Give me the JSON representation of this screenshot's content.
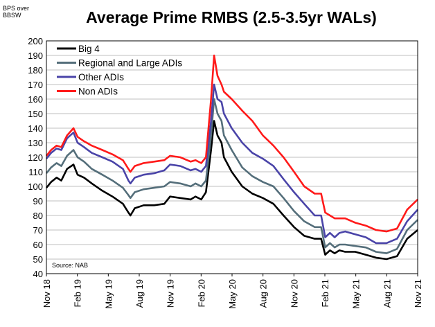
{
  "chart_data": {
    "type": "line",
    "title": "Average Prime RMBS (2.5-3.5yr WALs)",
    "units_label": [
      "BPS over",
      "BBSW"
    ],
    "source": "Source: NAB",
    "ylim": [
      40,
      200
    ],
    "yticks": [
      40,
      50,
      60,
      70,
      80,
      90,
      100,
      110,
      120,
      130,
      140,
      150,
      160,
      170,
      180,
      190,
      200
    ],
    "xlim": [
      "2018-11-01",
      "2021-11-01"
    ],
    "xticks": [
      "Nov 18",
      "Feb 19",
      "May 19",
      "Aug 19",
      "Nov 19",
      "Feb 20",
      "May 20",
      "Aug 20",
      "Nov 20",
      "Feb 21",
      "May 21",
      "Aug 21",
      "Nov 21"
    ],
    "grid": true,
    "legend_position": "top-left",
    "series": [
      {
        "name": "Big 4",
        "color": "#000000",
        "points": [
          [
            "2018-11-01",
            99
          ],
          [
            "2018-11-15",
            103
          ],
          [
            "2018-12-01",
            106
          ],
          [
            "2018-12-15",
            104
          ],
          [
            "2019-01-01",
            112
          ],
          [
            "2019-01-20",
            115
          ],
          [
            "2019-02-01",
            108
          ],
          [
            "2019-02-20",
            106
          ],
          [
            "2019-03-15",
            102
          ],
          [
            "2019-04-15",
            97
          ],
          [
            "2019-05-15",
            93
          ],
          [
            "2019-06-15",
            88
          ],
          [
            "2019-07-01",
            82
          ],
          [
            "2019-07-07",
            80
          ],
          [
            "2019-07-20",
            85
          ],
          [
            "2019-08-15",
            87
          ],
          [
            "2019-09-15",
            87
          ],
          [
            "2019-10-15",
            88
          ],
          [
            "2019-11-01",
            93
          ],
          [
            "2019-12-01",
            92
          ],
          [
            "2020-01-01",
            91
          ],
          [
            "2020-01-15",
            93
          ],
          [
            "2020-02-01",
            91
          ],
          [
            "2020-02-15",
            96
          ],
          [
            "2020-03-01",
            125
          ],
          [
            "2020-03-10",
            145
          ],
          [
            "2020-03-20",
            135
          ],
          [
            "2020-04-01",
            130
          ],
          [
            "2020-04-08",
            120
          ],
          [
            "2020-05-01",
            110
          ],
          [
            "2020-06-01",
            100
          ],
          [
            "2020-07-01",
            95
          ],
          [
            "2020-08-01",
            92
          ],
          [
            "2020-09-01",
            88
          ],
          [
            "2020-10-01",
            80
          ],
          [
            "2020-11-01",
            72
          ],
          [
            "2020-12-01",
            66
          ],
          [
            "2021-01-01",
            64
          ],
          [
            "2021-01-20",
            64
          ],
          [
            "2021-02-01",
            53
          ],
          [
            "2021-02-15",
            56
          ],
          [
            "2021-03-01",
            54
          ],
          [
            "2021-03-15",
            56
          ],
          [
            "2021-04-01",
            55
          ],
          [
            "2021-05-01",
            55
          ],
          [
            "2021-06-01",
            53
          ],
          [
            "2021-07-01",
            51
          ],
          [
            "2021-08-01",
            50
          ],
          [
            "2021-09-01",
            52
          ],
          [
            "2021-10-01",
            64
          ],
          [
            "2021-11-01",
            70
          ]
        ]
      },
      {
        "name": "Regional and Large ADIs",
        "color": "#546e7a",
        "points": [
          [
            "2018-11-01",
            109
          ],
          [
            "2018-11-15",
            113
          ],
          [
            "2018-12-01",
            116
          ],
          [
            "2018-12-15",
            114
          ],
          [
            "2019-01-01",
            121
          ],
          [
            "2019-01-20",
            125
          ],
          [
            "2019-02-01",
            120
          ],
          [
            "2019-02-20",
            117
          ],
          [
            "2019-03-15",
            112
          ],
          [
            "2019-04-15",
            108
          ],
          [
            "2019-05-15",
            104
          ],
          [
            "2019-06-15",
            99
          ],
          [
            "2019-07-01",
            94
          ],
          [
            "2019-07-07",
            92
          ],
          [
            "2019-07-20",
            96
          ],
          [
            "2019-08-15",
            98
          ],
          [
            "2019-09-15",
            99
          ],
          [
            "2019-10-15",
            100
          ],
          [
            "2019-11-01",
            103
          ],
          [
            "2019-12-01",
            102
          ],
          [
            "2020-01-01",
            100
          ],
          [
            "2020-01-15",
            102
          ],
          [
            "2020-02-01",
            100
          ],
          [
            "2020-02-15",
            104
          ],
          [
            "2020-03-01",
            135
          ],
          [
            "2020-03-10",
            160
          ],
          [
            "2020-03-20",
            150
          ],
          [
            "2020-04-01",
            145
          ],
          [
            "2020-04-08",
            135
          ],
          [
            "2020-05-01",
            125
          ],
          [
            "2020-06-01",
            113
          ],
          [
            "2020-07-01",
            107
          ],
          [
            "2020-08-01",
            103
          ],
          [
            "2020-09-01",
            100
          ],
          [
            "2020-10-01",
            92
          ],
          [
            "2020-11-01",
            83
          ],
          [
            "2020-12-01",
            76
          ],
          [
            "2021-01-01",
            72
          ],
          [
            "2021-01-20",
            72
          ],
          [
            "2021-02-01",
            58
          ],
          [
            "2021-02-15",
            61
          ],
          [
            "2021-03-01",
            58
          ],
          [
            "2021-03-15",
            60
          ],
          [
            "2021-04-01",
            60
          ],
          [
            "2021-05-01",
            59
          ],
          [
            "2021-06-01",
            58
          ],
          [
            "2021-07-01",
            55
          ],
          [
            "2021-08-01",
            54
          ],
          [
            "2021-09-01",
            57
          ],
          [
            "2021-10-01",
            70
          ],
          [
            "2021-11-01",
            77
          ]
        ]
      },
      {
        "name": "Other ADIs",
        "color": "#4a44a8",
        "points": [
          [
            "2018-11-01",
            119
          ],
          [
            "2018-11-15",
            123
          ],
          [
            "2018-12-01",
            126
          ],
          [
            "2018-12-15",
            125
          ],
          [
            "2019-01-01",
            133
          ],
          [
            "2019-01-20",
            137
          ],
          [
            "2019-02-01",
            130
          ],
          [
            "2019-02-20",
            127
          ],
          [
            "2019-03-15",
            123
          ],
          [
            "2019-04-15",
            120
          ],
          [
            "2019-05-15",
            117
          ],
          [
            "2019-06-15",
            112
          ],
          [
            "2019-07-01",
            104
          ],
          [
            "2019-07-07",
            102
          ],
          [
            "2019-07-20",
            106
          ],
          [
            "2019-08-15",
            108
          ],
          [
            "2019-09-15",
            109
          ],
          [
            "2019-10-15",
            111
          ],
          [
            "2019-11-01",
            115
          ],
          [
            "2019-12-01",
            114
          ],
          [
            "2020-01-01",
            111
          ],
          [
            "2020-01-15",
            112
          ],
          [
            "2020-02-01",
            110
          ],
          [
            "2020-02-15",
            114
          ],
          [
            "2020-03-01",
            145
          ],
          [
            "2020-03-10",
            170
          ],
          [
            "2020-03-20",
            160
          ],
          [
            "2020-04-01",
            158
          ],
          [
            "2020-04-08",
            150
          ],
          [
            "2020-05-01",
            140
          ],
          [
            "2020-06-01",
            130
          ],
          [
            "2020-07-01",
            123
          ],
          [
            "2020-08-01",
            119
          ],
          [
            "2020-09-01",
            114
          ],
          [
            "2020-10-01",
            105
          ],
          [
            "2020-11-01",
            96
          ],
          [
            "2020-12-01",
            88
          ],
          [
            "2021-01-01",
            80
          ],
          [
            "2021-01-20",
            80
          ],
          [
            "2021-02-01",
            65
          ],
          [
            "2021-02-15",
            68
          ],
          [
            "2021-03-01",
            65
          ],
          [
            "2021-03-15",
            68
          ],
          [
            "2021-04-01",
            69
          ],
          [
            "2021-05-01",
            67
          ],
          [
            "2021-06-01",
            65
          ],
          [
            "2021-07-01",
            61
          ],
          [
            "2021-08-01",
            61
          ],
          [
            "2021-09-01",
            64
          ],
          [
            "2021-10-01",
            76
          ],
          [
            "2021-11-01",
            84
          ]
        ]
      },
      {
        "name": "Non ADIs",
        "color": "#ff1a1a",
        "points": [
          [
            "2018-11-01",
            121
          ],
          [
            "2018-11-15",
            125
          ],
          [
            "2018-12-01",
            128
          ],
          [
            "2018-12-15",
            127
          ],
          [
            "2019-01-01",
            135
          ],
          [
            "2019-01-20",
            140
          ],
          [
            "2019-02-01",
            134
          ],
          [
            "2019-02-20",
            131
          ],
          [
            "2019-03-15",
            128
          ],
          [
            "2019-04-15",
            125
          ],
          [
            "2019-05-15",
            122
          ],
          [
            "2019-06-15",
            118
          ],
          [
            "2019-07-01",
            112
          ],
          [
            "2019-07-07",
            110
          ],
          [
            "2019-07-20",
            114
          ],
          [
            "2019-08-15",
            116
          ],
          [
            "2019-09-15",
            117
          ],
          [
            "2019-10-15",
            118
          ],
          [
            "2019-11-01",
            121
          ],
          [
            "2019-12-01",
            120
          ],
          [
            "2020-01-01",
            117
          ],
          [
            "2020-01-15",
            118
          ],
          [
            "2020-02-01",
            116
          ],
          [
            "2020-02-15",
            120
          ],
          [
            "2020-03-01",
            160
          ],
          [
            "2020-03-10",
            190
          ],
          [
            "2020-03-20",
            176
          ],
          [
            "2020-04-01",
            170
          ],
          [
            "2020-04-08",
            165
          ],
          [
            "2020-05-01",
            160
          ],
          [
            "2020-06-01",
            152
          ],
          [
            "2020-07-01",
            145
          ],
          [
            "2020-08-01",
            135
          ],
          [
            "2020-09-01",
            128
          ],
          [
            "2020-10-01",
            120
          ],
          [
            "2020-11-01",
            110
          ],
          [
            "2020-12-01",
            100
          ],
          [
            "2021-01-01",
            95
          ],
          [
            "2021-01-20",
            95
          ],
          [
            "2021-02-01",
            82
          ],
          [
            "2021-02-15",
            80
          ],
          [
            "2021-03-01",
            78
          ],
          [
            "2021-03-15",
            78
          ],
          [
            "2021-04-01",
            78
          ],
          [
            "2021-05-01",
            75
          ],
          [
            "2021-06-01",
            73
          ],
          [
            "2021-07-01",
            70
          ],
          [
            "2021-08-01",
            69
          ],
          [
            "2021-09-01",
            71
          ],
          [
            "2021-10-01",
            84
          ],
          [
            "2021-11-01",
            91
          ]
        ]
      }
    ]
  }
}
